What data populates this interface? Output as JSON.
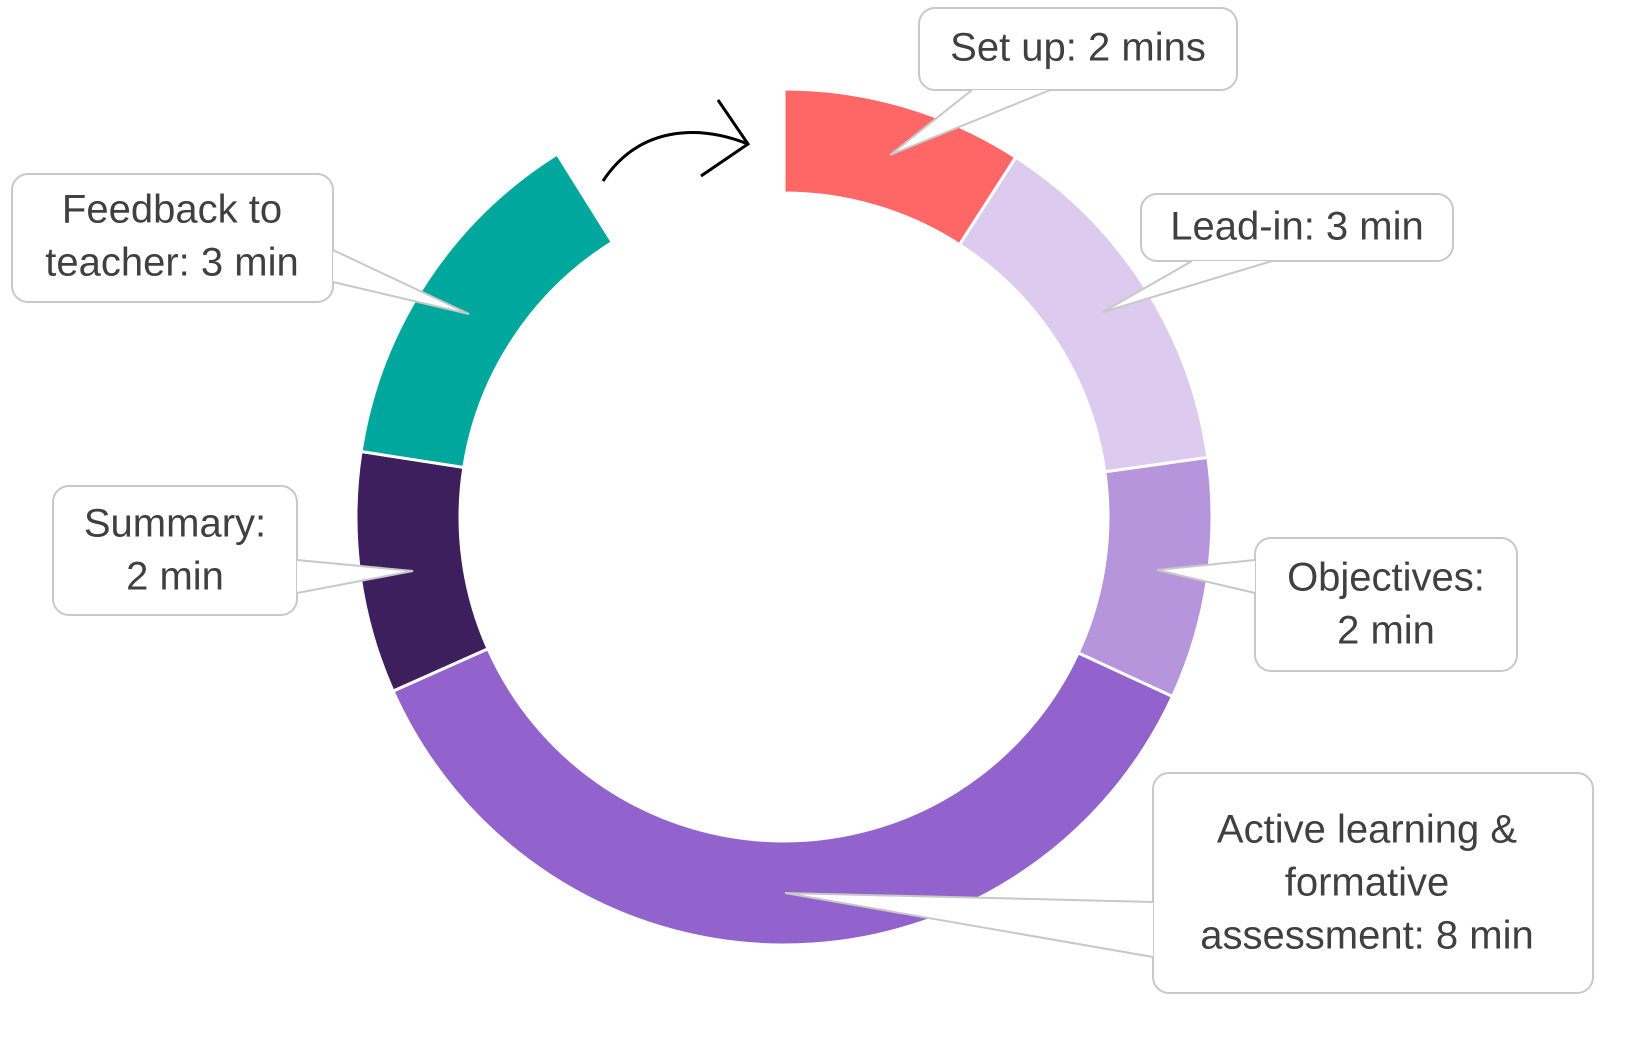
{
  "chart_data": {
    "type": "donut",
    "categories": [
      [
        "Set up: 2 mins"
      ],
      [
        "Lead-in: 3 min"
      ],
      [
        "Objectives:",
        "2 min"
      ],
      [
        "Active learning &",
        "formative",
        "assessment: 8 min"
      ],
      [
        "Summary:",
        "2 min"
      ],
      [
        "Feedback to",
        "teacher: 3 min"
      ]
    ],
    "values": [
      2,
      3,
      2,
      8,
      2,
      3
    ],
    "colors": [
      "#ff6666",
      "#dccbee",
      "#b795dc",
      "#9263cc",
      "#3d1f5e",
      "#00a79d"
    ]
  }
}
